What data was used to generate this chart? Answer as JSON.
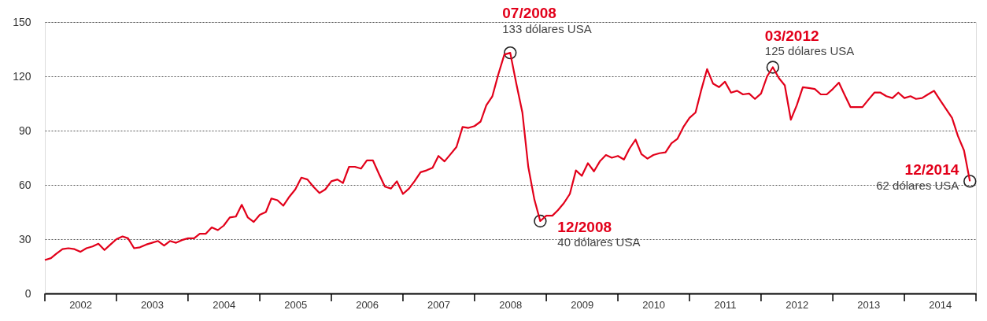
{
  "chart_data": {
    "type": "line",
    "x": [
      "2002-01",
      "2002-02",
      "2002-03",
      "2002-04",
      "2002-05",
      "2002-06",
      "2002-07",
      "2002-08",
      "2002-09",
      "2002-10",
      "2002-11",
      "2002-12",
      "2003-01",
      "2003-02",
      "2003-03",
      "2003-04",
      "2003-05",
      "2003-06",
      "2003-07",
      "2003-08",
      "2003-09",
      "2003-10",
      "2003-11",
      "2003-12",
      "2004-01",
      "2004-02",
      "2004-03",
      "2004-04",
      "2004-05",
      "2004-06",
      "2004-07",
      "2004-08",
      "2004-09",
      "2004-10",
      "2004-11",
      "2004-12",
      "2005-01",
      "2005-02",
      "2005-03",
      "2005-04",
      "2005-05",
      "2005-06",
      "2005-07",
      "2005-08",
      "2005-09",
      "2005-10",
      "2005-11",
      "2005-12",
      "2006-01",
      "2006-02",
      "2006-03",
      "2006-04",
      "2006-05",
      "2006-06",
      "2006-07",
      "2006-08",
      "2006-09",
      "2006-10",
      "2006-11",
      "2006-12",
      "2007-01",
      "2007-02",
      "2007-03",
      "2007-04",
      "2007-05",
      "2007-06",
      "2007-07",
      "2007-08",
      "2007-09",
      "2007-10",
      "2007-11",
      "2007-12",
      "2008-01",
      "2008-02",
      "2008-03",
      "2008-04",
      "2008-05",
      "2008-06",
      "2008-07",
      "2008-08",
      "2008-09",
      "2008-10",
      "2008-11",
      "2008-12",
      "2009-01",
      "2009-02",
      "2009-03",
      "2009-04",
      "2009-05",
      "2009-06",
      "2009-07",
      "2009-08",
      "2009-09",
      "2009-10",
      "2009-11",
      "2009-12",
      "2010-01",
      "2010-02",
      "2010-03",
      "2010-04",
      "2010-05",
      "2010-06",
      "2010-07",
      "2010-08",
      "2010-09",
      "2010-10",
      "2010-11",
      "2010-12",
      "2011-01",
      "2011-02",
      "2011-03",
      "2011-04",
      "2011-05",
      "2011-06",
      "2011-07",
      "2011-08",
      "2011-09",
      "2011-10",
      "2011-11",
      "2011-12",
      "2012-01",
      "2012-02",
      "2012-03",
      "2012-04",
      "2012-05",
      "2012-06",
      "2012-07",
      "2012-08",
      "2012-09",
      "2012-10",
      "2012-11",
      "2012-12",
      "2013-01",
      "2013-02",
      "2013-03",
      "2013-04",
      "2013-05",
      "2013-06",
      "2013-07",
      "2013-08",
      "2013-09",
      "2013-10",
      "2013-11",
      "2013-12",
      "2014-01",
      "2014-02",
      "2014-03",
      "2014-04",
      "2014-05",
      "2014-06",
      "2014-07",
      "2014-08",
      "2014-09",
      "2014-10",
      "2014-11",
      "2014-12"
    ],
    "series": [
      {
        "color": "#e2001a",
        "values": [
          18.5,
          19.5,
          22,
          24.5,
          25,
          24.5,
          23,
          25,
          26,
          27.5,
          24,
          27,
          30,
          31.5,
          30.5,
          25,
          25.5,
          27,
          28,
          29,
          26.5,
          29,
          28,
          29.5,
          30.5,
          30.5,
          33,
          33,
          36.5,
          35,
          37.5,
          42,
          42.5,
          49,
          42,
          39.5,
          43.5,
          45,
          52.5,
          51.5,
          48.5,
          53.5,
          57.5,
          64,
          63,
          59,
          55.5,
          57.5,
          62,
          63,
          61,
          70,
          70,
          69,
          73.5,
          73.5,
          66,
          59,
          58,
          62,
          55,
          58,
          62,
          67,
          68,
          69.5,
          76,
          73,
          77,
          81,
          92,
          91.5,
          92.5,
          95,
          104,
          109,
          121,
          132,
          133,
          116,
          100,
          70,
          52,
          40,
          43,
          43,
          46,
          50,
          55,
          68,
          65,
          72,
          67.5,
          73,
          76.5,
          75,
          76,
          74,
          80,
          85,
          77,
          74.5,
          76.5,
          77.5,
          78,
          83,
          85.5,
          92,
          97,
          100,
          112,
          124,
          116,
          114,
          117,
          111,
          112,
          110,
          110.5,
          107.5,
          110.5,
          120,
          125,
          119,
          115,
          96,
          104,
          114,
          113.5,
          113,
          110,
          110,
          113,
          116.5,
          110,
          103,
          103,
          103,
          107,
          111,
          111,
          109,
          108,
          111,
          108,
          109,
          107.5,
          108,
          110,
          112,
          107,
          102,
          97,
          87,
          79,
          62
        ]
      }
    ],
    "ylim": [
      0,
      150
    ],
    "yticks": [
      0,
      30,
      60,
      90,
      120,
      150
    ],
    "grid": "y",
    "line_style": "solid",
    "marker": "none",
    "xlim": [
      "2002-01",
      "2015-01"
    ],
    "xticks": [
      {
        "value": "2002-01",
        "label": null
      },
      {
        "value": "2002-07",
        "label": "2002"
      },
      {
        "value": "2003-01",
        "label": null
      },
      {
        "value": "2003-07",
        "label": "2003"
      },
      {
        "value": "2004-01",
        "label": null
      },
      {
        "value": "2004-07",
        "label": "2004"
      },
      {
        "value": "2005-01",
        "label": null
      },
      {
        "value": "2005-07",
        "label": "2005"
      },
      {
        "value": "2006-01",
        "label": null
      },
      {
        "value": "2006-07",
        "label": "2006"
      },
      {
        "value": "2007-01",
        "label": null
      },
      {
        "value": "2007-07",
        "label": "2007"
      },
      {
        "value": "2008-01",
        "label": null
      },
      {
        "value": "2008-07",
        "label": "2008"
      },
      {
        "value": "2009-01",
        "label": null
      },
      {
        "value": "2009-07",
        "label": "2009"
      },
      {
        "value": "2010-01",
        "label": null
      },
      {
        "value": "2010-07",
        "label": "2010"
      },
      {
        "value": "2011-01",
        "label": null
      },
      {
        "value": "2011-07",
        "label": "2011"
      },
      {
        "value": "2012-01",
        "label": null
      },
      {
        "value": "2012-07",
        "label": "2012"
      },
      {
        "value": "2013-01",
        "label": null
      },
      {
        "value": "2013-07",
        "label": "2013"
      },
      {
        "value": "2014-01",
        "label": null
      },
      {
        "value": "2014-07",
        "label": "2014"
      },
      {
        "value": "2015-01",
        "label": null
      }
    ],
    "annotations": [
      {
        "text": "07/2008",
        "x": "2008-07",
        "y": 133
      },
      {
        "text": "133 dólares USA",
        "x": "2008-07",
        "y": 133
      },
      {
        "text": "12/2008",
        "x": "2008-12",
        "y": 40
      },
      {
        "text": "40 dólares USA",
        "x": "2008-12",
        "y": 40
      },
      {
        "text": "03/2012",
        "x": "2012-03",
        "y": 125
      },
      {
        "text": "125 dólares USA",
        "x": "2012-03",
        "y": 125
      },
      {
        "text": "12/2014",
        "x": "2014-12",
        "y": 62
      },
      {
        "text": "62 dólares USA",
        "x": "2014-12",
        "y": 62
      }
    ]
  }
}
